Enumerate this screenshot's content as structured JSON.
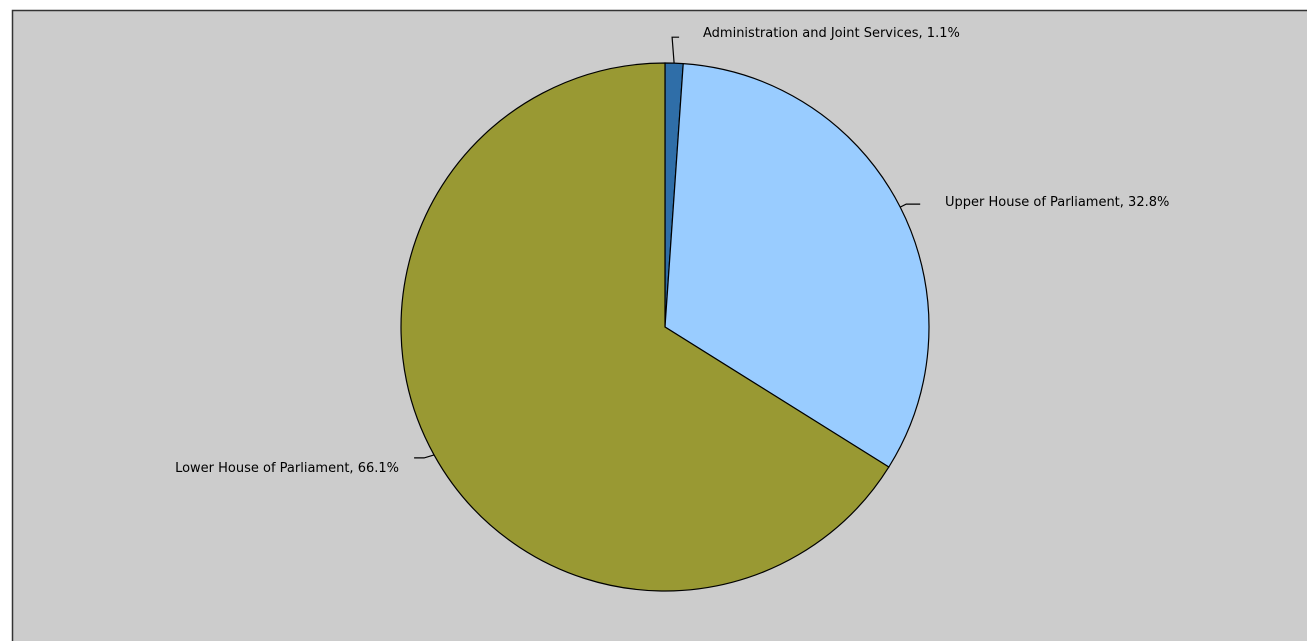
{
  "chart_data": {
    "type": "pie",
    "title": "",
    "legend": "none",
    "slices": [
      {
        "label": "Administration and Joint Services",
        "value": 1.1,
        "display": "Administration and Joint Services, 1.1%",
        "color": "#2f6ea8"
      },
      {
        "label": "Upper House of Parliament",
        "value": 32.8,
        "display": "Upper House of Parliament, 32.8%",
        "color": "#99ccff"
      },
      {
        "label": "Lower House of Parliament",
        "value": 66.1,
        "display": "Lower House of Parliament, 66.1%",
        "color": "#999933"
      }
    ]
  },
  "style": {
    "background": "#cccccc",
    "border": "#333333",
    "outline": "#000000"
  }
}
